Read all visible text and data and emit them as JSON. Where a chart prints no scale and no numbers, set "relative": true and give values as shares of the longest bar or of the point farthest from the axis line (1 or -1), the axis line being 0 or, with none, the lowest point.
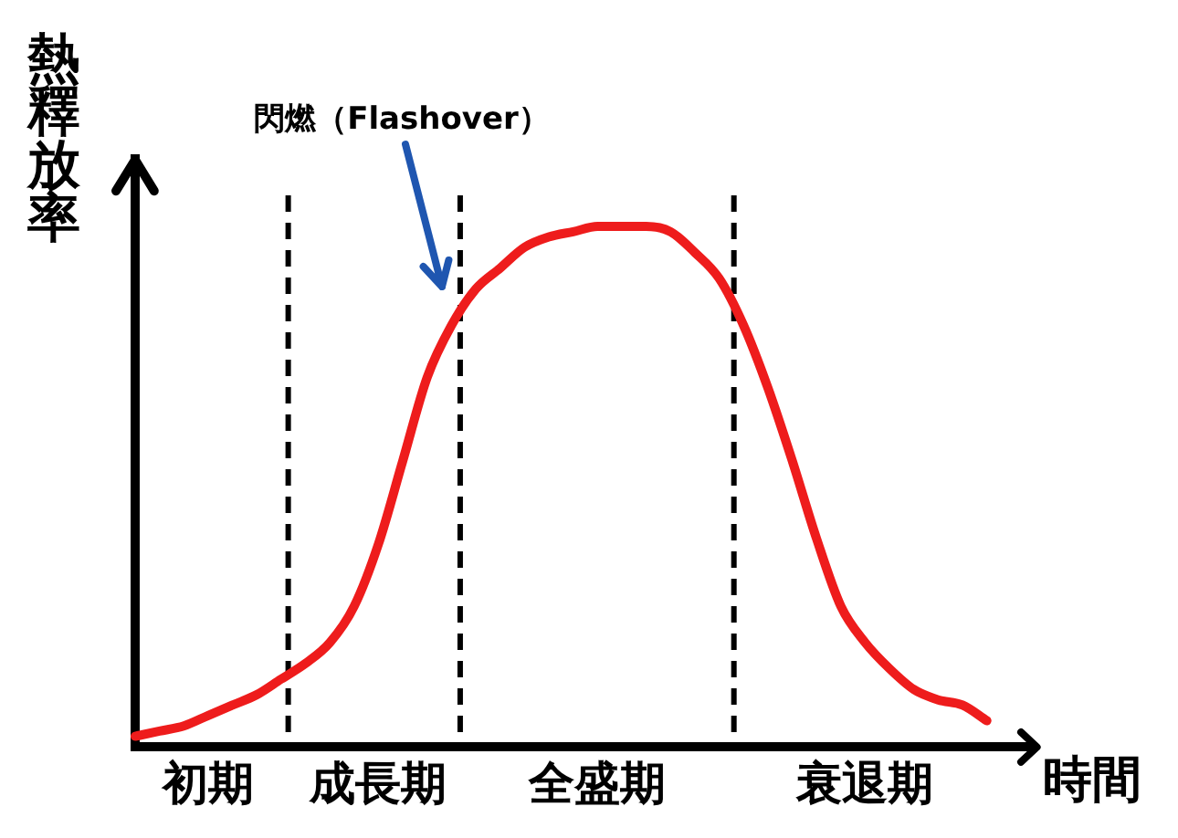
{
  "chart_data": {
    "type": "line",
    "relative": true,
    "ylabel": "熱釋放率",
    "xlabel": "時間",
    "categories": [
      null,
      null,
      null,
      "初期",
      null,
      null,
      null,
      null,
      null,
      null,
      "成長期",
      null,
      null,
      null,
      null,
      null,
      null,
      null,
      null,
      "全盛期",
      null,
      null,
      null,
      null,
      null,
      null,
      null,
      null,
      null,
      null,
      "衰退期",
      null,
      null,
      null,
      null,
      null,
      null,
      null
    ],
    "series": [
      {
        "color": "#ee1c1c",
        "values": [
          0.02,
          0.03,
          0.04,
          0.06,
          0.08,
          0.1,
          0.13,
          0.16,
          0.2,
          0.27,
          0.39,
          0.55,
          0.71,
          0.81,
          0.88,
          0.92,
          0.96,
          0.98,
          0.99,
          1,
          1,
          1,
          0.99,
          0.95,
          0.9,
          0.81,
          0.69,
          0.55,
          0.4,
          0.27,
          0.2,
          0.15,
          0.11,
          0.09,
          0.08,
          0.05,
          null,
          null
        ]
      }
    ],
    "annotations": [
      "閃燃（Flashover）"
    ],
    "marker": "none",
    "line_style": "solid"
  }
}
